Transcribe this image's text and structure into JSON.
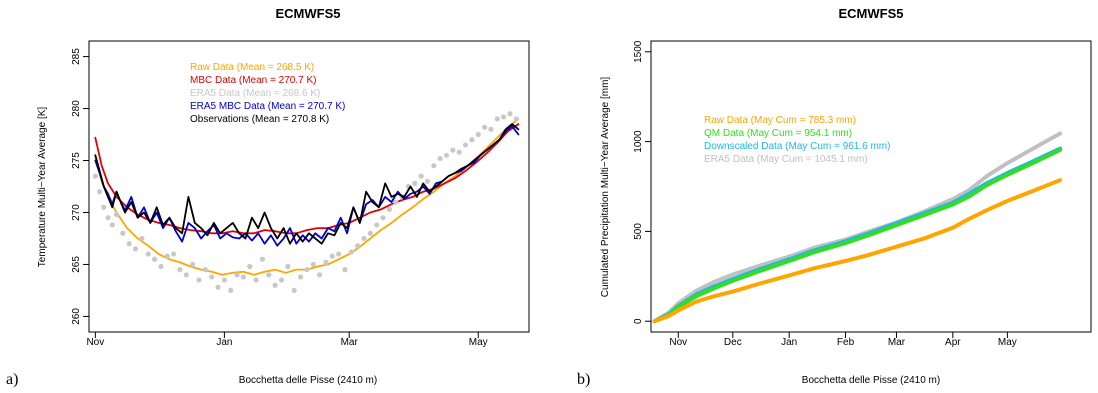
{
  "chart_data": [
    {
      "type": "line",
      "panel_label": "a)",
      "title": "ECMWFS5",
      "xlabel": "Bocchetta delle Pisse (2410 m)",
      "ylabel": "Temperature Multi−Year Average [K]",
      "ylim": [
        258.5,
        286.5
      ],
      "y_ticks": [
        "260",
        "265",
        "270",
        "275",
        "280",
        "285"
      ],
      "xlim": [
        -3,
        205
      ],
      "x_ticks": [
        {
          "label": "Nov",
          "day": 0
        },
        {
          "label": "Jan",
          "day": 61
        },
        {
          "label": "Mar",
          "day": 120
        },
        {
          "label": "May",
          "day": 181
        }
      ],
      "grid": false,
      "legend_position": "top-center",
      "x_unit": "days since Nov 1",
      "series": [
        {
          "name": "Raw Data (Mean = 268.5 K)",
          "color": "#ffa500",
          "style": "line",
          "x": [
            0,
            3,
            6,
            10,
            15,
            20,
            25,
            30,
            35,
            40,
            45,
            50,
            55,
            60,
            65,
            70,
            75,
            80,
            85,
            90,
            95,
            100,
            105,
            110,
            115,
            120,
            125,
            130,
            135,
            140,
            145,
            150,
            155,
            160,
            165,
            170,
            175,
            180,
            185,
            190,
            195,
            200
          ],
          "y": [
            275.5,
            273.0,
            271.5,
            270.0,
            268.5,
            267.5,
            266.8,
            266.0,
            265.5,
            265.2,
            264.8,
            264.5,
            264.3,
            264.0,
            264.2,
            264.3,
            264.0,
            264.3,
            264.5,
            264.2,
            264.5,
            264.5,
            264.8,
            265.0,
            265.5,
            266.0,
            266.7,
            267.5,
            268.3,
            269.0,
            269.8,
            270.5,
            271.3,
            272.0,
            272.8,
            273.5,
            274.3,
            275.2,
            276.2,
            277.2,
            278.2,
            279.0
          ]
        },
        {
          "name": "MBC Data (Mean = 270.7 K)",
          "color": "#e00000",
          "style": "line",
          "x": [
            0,
            3,
            6,
            10,
            15,
            20,
            25,
            30,
            35,
            40,
            45,
            50,
            55,
            60,
            65,
            70,
            75,
            80,
            85,
            90,
            95,
            100,
            105,
            110,
            115,
            120,
            125,
            130,
            135,
            140,
            145,
            150,
            155,
            160,
            165,
            170,
            175,
            180,
            185,
            190,
            195,
            200
          ],
          "y": [
            277.2,
            274.5,
            272.8,
            271.5,
            270.5,
            269.8,
            269.3,
            269.0,
            268.8,
            268.5,
            268.3,
            268.2,
            268.0,
            268.0,
            268.2,
            268.0,
            268.0,
            268.3,
            268.2,
            268.0,
            268.0,
            268.3,
            268.5,
            268.5,
            268.8,
            269.0,
            269.5,
            270.0,
            270.3,
            270.8,
            271.2,
            271.5,
            272.0,
            272.3,
            272.8,
            273.3,
            274.0,
            274.8,
            275.7,
            276.7,
            277.8,
            278.5
          ]
        },
        {
          "name": "ERA5 Data (Mean = 268.6 K)",
          "color": "#c8c8c8",
          "style": "points",
          "x": [
            0,
            2,
            4,
            6,
            8,
            10,
            13,
            16,
            19,
            22,
            25,
            28,
            31,
            34,
            37,
            40,
            43,
            46,
            49,
            52,
            55,
            58,
            61,
            64,
            67,
            70,
            73,
            76,
            79,
            82,
            85,
            88,
            91,
            94,
            97,
            100,
            103,
            106,
            109,
            112,
            115,
            118,
            121,
            124,
            127,
            130,
            133,
            136,
            139,
            142,
            145,
            148,
            151,
            154,
            157,
            160,
            163,
            166,
            169,
            172,
            175,
            178,
            181,
            184,
            187,
            190,
            193,
            196,
            199
          ],
          "y": [
            273.5,
            272.0,
            270.5,
            269.5,
            268.8,
            269.8,
            268.0,
            267.0,
            266.5,
            267.5,
            266.0,
            265.5,
            264.8,
            265.8,
            266.0,
            264.5,
            264.0,
            265.0,
            263.5,
            264.5,
            263.8,
            262.8,
            263.5,
            262.5,
            264.0,
            263.8,
            264.8,
            263.5,
            265.5,
            264.0,
            263.0,
            263.5,
            264.8,
            262.5,
            263.8,
            264.5,
            265.0,
            264.0,
            265.2,
            265.8,
            266.0,
            264.5,
            266.2,
            266.8,
            267.5,
            268.0,
            268.8,
            269.5,
            270.3,
            271.0,
            271.5,
            272.5,
            272.8,
            273.5,
            273.0,
            274.5,
            275.2,
            275.5,
            276.0,
            275.8,
            276.5,
            277.0,
            277.5,
            278.2,
            278.0,
            279.0,
            279.2,
            279.5,
            279.0
          ]
        },
        {
          "name": "ERA5 MBC Data (Mean = 270.7 K)",
          "color": "#0000d0",
          "style": "line",
          "x": [
            0,
            2,
            4,
            6,
            8,
            10,
            12,
            14,
            17,
            20,
            23,
            26,
            29,
            32,
            35,
            38,
            41,
            44,
            47,
            50,
            53,
            56,
            59,
            62,
            65,
            68,
            71,
            74,
            77,
            80,
            83,
            86,
            89,
            92,
            95,
            98,
            101,
            104,
            107,
            110,
            113,
            116,
            119,
            122,
            125,
            128,
            131,
            134,
            137,
            140,
            143,
            146,
            149,
            152,
            155,
            158,
            161,
            164,
            167,
            170,
            173,
            176,
            179,
            182,
            185,
            188,
            191,
            194,
            197,
            200
          ],
          "y": [
            275.0,
            273.8,
            272.5,
            271.8,
            270.8,
            272.0,
            271.0,
            270.2,
            271.5,
            269.5,
            270.5,
            269.0,
            270.0,
            268.5,
            269.5,
            268.2,
            267.2,
            269.0,
            268.5,
            267.5,
            268.2,
            268.8,
            267.5,
            268.0,
            267.6,
            267.5,
            268.0,
            267.3,
            268.0,
            267.0,
            267.8,
            266.8,
            267.5,
            268.5,
            267.0,
            267.8,
            267.2,
            268.0,
            267.5,
            268.5,
            268.2,
            269.5,
            268.0,
            270.5,
            269.0,
            270.8,
            271.2,
            270.5,
            271.5,
            271.0,
            272.0,
            271.3,
            271.8,
            272.0,
            272.5,
            271.8,
            272.8,
            273.0,
            273.5,
            273.8,
            274.0,
            274.5,
            274.8,
            275.5,
            276.0,
            276.5,
            277.0,
            277.8,
            278.3,
            277.5
          ]
        },
        {
          "name": "Observations (Mean = 270.8 K)",
          "color": "#000000",
          "style": "line",
          "x": [
            0,
            2,
            4,
            6,
            8,
            10,
            12,
            14,
            17,
            20,
            23,
            26,
            29,
            32,
            35,
            38,
            41,
            44,
            47,
            50,
            53,
            56,
            59,
            62,
            65,
            68,
            71,
            74,
            77,
            80,
            83,
            86,
            89,
            92,
            95,
            98,
            101,
            104,
            107,
            110,
            113,
            116,
            119,
            122,
            125,
            128,
            131,
            134,
            137,
            140,
            143,
            146,
            149,
            152,
            155,
            158,
            161,
            164,
            167,
            170,
            173,
            176,
            179,
            182,
            185,
            188,
            191,
            194,
            197,
            200
          ],
          "y": [
            275.5,
            274.0,
            272.5,
            271.5,
            270.5,
            272.0,
            271.0,
            270.0,
            271.0,
            269.5,
            270.0,
            269.0,
            270.5,
            268.8,
            269.5,
            268.5,
            268.0,
            271.5,
            269.0,
            268.5,
            267.8,
            269.0,
            268.0,
            268.5,
            269.0,
            268.0,
            267.5,
            269.5,
            268.5,
            270.0,
            268.5,
            267.5,
            268.5,
            267.0,
            268.0,
            267.2,
            268.0,
            267.5,
            267.0,
            268.0,
            267.8,
            269.0,
            268.5,
            270.5,
            269.0,
            272.0,
            271.0,
            270.5,
            272.8,
            271.5,
            271.8,
            271.5,
            272.5,
            271.5,
            272.8,
            272.0,
            272.5,
            273.0,
            273.5,
            273.8,
            274.2,
            274.5,
            275.0,
            275.5,
            276.0,
            276.5,
            277.0,
            278.0,
            278.5,
            278.0
          ]
        }
      ]
    },
    {
      "type": "line",
      "panel_label": "b)",
      "title": "ECMWFS5",
      "xlabel": "Bocchetta delle Pisse (2410 m)",
      "ylabel": "Cumulated Precipitation Multi−Year Average [mm]",
      "ylim": [
        -60,
        1560
      ],
      "y_ticks": [
        "0",
        "500",
        "1000",
        "1500"
      ],
      "xlim": [
        -15,
        227
      ],
      "x_ticks": [
        {
          "label": "Nov",
          "day": 0
        },
        {
          "label": "Dec",
          "day": 30
        },
        {
          "label": "Jan",
          "day": 61
        },
        {
          "label": "Feb",
          "day": 92
        },
        {
          "label": "Mar",
          "day": 120
        },
        {
          "label": "Apr",
          "day": 151
        },
        {
          "label": "May",
          "day": 181
        }
      ],
      "grid": false,
      "legend_position": "top-center",
      "x_unit": "days since Nov 1",
      "series": [
        {
          "name": "ERA5 Data (May Cum = 1045.1 mm)",
          "color": "#c0c0c0",
          "x": [
            -13,
            -5,
            0,
            10,
            20,
            30,
            45,
            61,
            75,
            92,
            105,
            120,
            135,
            151,
            160,
            170,
            181,
            195,
            210
          ],
          "y": [
            0,
            50,
            100,
            170,
            220,
            260,
            310,
            360,
            410,
            455,
            500,
            550,
            610,
            680,
            730,
            810,
            880,
            960,
            1045
          ]
        },
        {
          "name": "Downscaled Data (May Cum = 961.6 mm)",
          "color": "#1fb8e8",
          "x": [
            -13,
            -5,
            0,
            10,
            20,
            30,
            45,
            61,
            75,
            92,
            105,
            120,
            135,
            151,
            160,
            170,
            181,
            195,
            210
          ],
          "y": [
            0,
            40,
            85,
            150,
            195,
            235,
            290,
            345,
            395,
            445,
            490,
            545,
            600,
            660,
            710,
            770,
            825,
            890,
            961
          ]
        },
        {
          "name": "QM Data (May Cum = 954.1 mm)",
          "color": "#33dd22",
          "x": [
            -13,
            -5,
            0,
            10,
            20,
            30,
            45,
            61,
            75,
            92,
            105,
            120,
            135,
            151,
            160,
            170,
            181,
            195,
            210
          ],
          "y": [
            0,
            35,
            80,
            140,
            185,
            225,
            280,
            335,
            385,
            435,
            480,
            535,
            590,
            650,
            695,
            760,
            815,
            880,
            954
          ]
        },
        {
          "name": "Raw Data (May Cum = 785.3 mm)",
          "color": "#ffa500",
          "x": [
            -13,
            -5,
            0,
            10,
            20,
            30,
            45,
            61,
            75,
            92,
            105,
            120,
            135,
            151,
            160,
            170,
            181,
            195,
            210
          ],
          "y": [
            0,
            30,
            60,
            110,
            140,
            165,
            210,
            255,
            295,
            335,
            370,
            415,
            460,
            520,
            570,
            620,
            670,
            725,
            785
          ]
        }
      ],
      "legend_order": [
        "Raw Data (May Cum = 785.3 mm)",
        "QM Data (May Cum = 954.1 mm)",
        "Downscaled Data (May Cum = 961.6 mm)",
        "ERA5 Data (May Cum = 1045.1 mm)"
      ]
    }
  ]
}
